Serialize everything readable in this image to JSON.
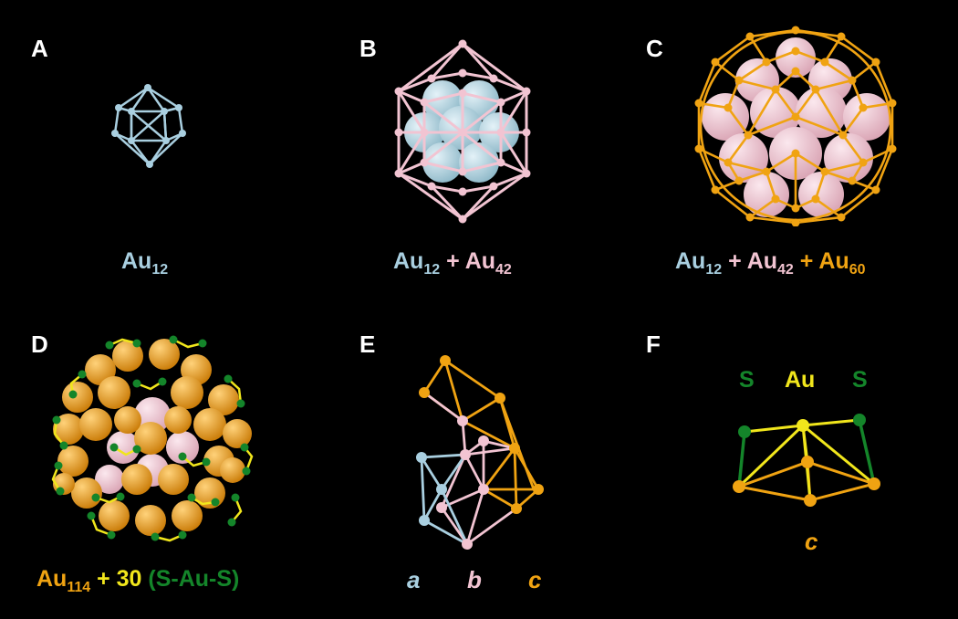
{
  "colors": {
    "background": "#000000",
    "au12": "#a9cfe0",
    "au42": "#f2c4d2",
    "au60": "#f0a312",
    "sulfur": "#14852a",
    "staple_au": "#f1e61c",
    "white": "#ffffff"
  },
  "panels": {
    "a": {
      "letter": "A",
      "cap": {
        "au": "Au",
        "n12": "12"
      }
    },
    "b": {
      "letter": "B",
      "cap": {
        "au1": "Au",
        "n12": "12",
        "plus": " + ",
        "au2": "Au",
        "n42": "42"
      }
    },
    "c": {
      "letter": "C",
      "cap": {
        "au1": "Au",
        "n12": "12",
        "plus1": " + ",
        "au2": "Au",
        "n42": "42",
        "plus2": " + ",
        "au3": "Au",
        "n60": "60"
      }
    },
    "d": {
      "letter": "D",
      "cap": {
        "au": "Au",
        "n114": "114",
        "plus30": " + 30 ",
        "staple": "(S-Au-S)"
      }
    },
    "e": {
      "letter": "E",
      "labels": {
        "a": "a",
        "b": "b",
        "c": "c"
      }
    },
    "f": {
      "letter": "F",
      "labels": {
        "s_left": "S",
        "au": "Au",
        "s_right": "S",
        "c": "c"
      }
    }
  }
}
